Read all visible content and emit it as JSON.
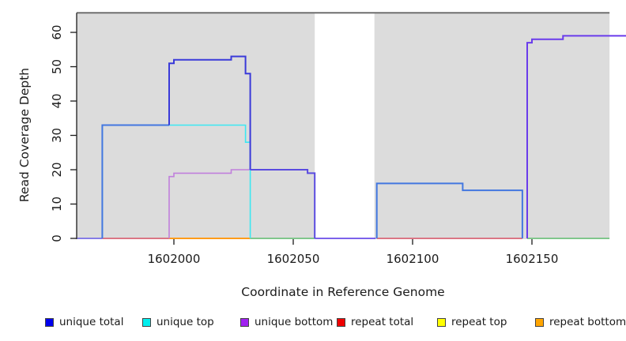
{
  "chart_data": {
    "type": "line",
    "subtype": "step-coverage-plot",
    "title": "",
    "xlabel": "Coordinate in Reference Genome",
    "ylabel": "Read Coverage Depth",
    "xlim": [
      1601959,
      1602190
    ],
    "ylim": [
      0,
      66
    ],
    "x_ticks": [
      1602000,
      1602050,
      1602100,
      1602150
    ],
    "y_ticks": [
      0,
      10,
      20,
      30,
      40,
      50,
      60
    ],
    "grid": false,
    "legend_position": "bottom",
    "region_top_value": 65.7,
    "region_top_border_color": "#6f6f6f",
    "background_regions": [
      {
        "name": "shaded-region-left",
        "x0": 1601959.3,
        "x1": 1602059,
        "color": "#dcdcdc"
      },
      {
        "name": "shaded-region-right",
        "x0": 1602084,
        "x1": 1602182.5,
        "color": "#dcdcdc"
      }
    ],
    "series": [
      {
        "name": "unique-zero-left",
        "color": "#7a6fe8",
        "width": 1.8,
        "points": [
          [
            1601959.5,
            0
          ],
          [
            1601970,
            0
          ]
        ]
      },
      {
        "name": "repeat-total-zero-left",
        "color": "#d95568",
        "width": 1.6,
        "points": [
          [
            1601970,
            0
          ],
          [
            1601998,
            0
          ]
        ]
      },
      {
        "name": "repeat-bottom-zero",
        "color": "#ff9c1a",
        "width": 2,
        "points": [
          [
            1601998,
            0
          ],
          [
            1602032,
            0
          ]
        ]
      },
      {
        "name": "green-zero-mid",
        "color": "#62be72",
        "width": 1.6,
        "points": [
          [
            1602032,
            0
          ],
          [
            1602059,
            0
          ]
        ]
      },
      {
        "name": "unique-zero-gap",
        "color": "#6a4be8",
        "width": 1.8,
        "points": [
          [
            1602059,
            0
          ],
          [
            1602084.5,
            0
          ]
        ]
      },
      {
        "name": "repeat-total-zero-right",
        "color": "#d95568",
        "width": 1.6,
        "points": [
          [
            1602085,
            0
          ],
          [
            1602146,
            0
          ]
        ]
      },
      {
        "name": "green-zero-right",
        "color": "#62be72",
        "width": 1.6,
        "points": [
          [
            1602148,
            0
          ],
          [
            1602182.5,
            0
          ]
        ]
      },
      {
        "name": "unique-bottom-steps",
        "color": "#c07fdc",
        "width": 1.6,
        "points": [
          [
            1601998,
            0
          ],
          [
            1601998,
            18
          ],
          [
            1602000,
            18
          ],
          [
            1602000,
            19
          ],
          [
            1602024,
            19
          ],
          [
            1602024,
            20
          ],
          [
            1602033,
            20
          ]
        ]
      },
      {
        "name": "unique-top",
        "color": "#3be8f2",
        "width": 1.6,
        "points": [
          [
            1601970,
            0
          ],
          [
            1601970,
            33
          ],
          [
            1602030,
            33
          ],
          [
            1602030,
            28
          ],
          [
            1602032,
            28
          ],
          [
            1602032,
            0
          ]
        ]
      },
      {
        "name": "unique-total-left",
        "color": "#4377e0",
        "width": 2,
        "points": [
          [
            1601970,
            0
          ],
          [
            1601970,
            33
          ],
          [
            1601998,
            33
          ]
        ]
      },
      {
        "name": "unique-total-peak",
        "color": "#3a3ad9",
        "width": 2,
        "points": [
          [
            1601998,
            33
          ],
          [
            1601998,
            51
          ],
          [
            1602000,
            51
          ],
          [
            1602000,
            52
          ],
          [
            1602024,
            52
          ],
          [
            1602024,
            53
          ],
          [
            1602030,
            53
          ],
          [
            1602030,
            48
          ],
          [
            1602032,
            48
          ],
          [
            1602032,
            20
          ]
        ]
      },
      {
        "name": "unique-total-bottom-overlap",
        "color": "#5a4be0",
        "width": 2,
        "points": [
          [
            1602032,
            20
          ],
          [
            1602056,
            20
          ],
          [
            1602056,
            19
          ],
          [
            1602059,
            19
          ],
          [
            1602059,
            0
          ]
        ]
      },
      {
        "name": "unique-total-right",
        "color": "#4377e0",
        "width": 2,
        "points": [
          [
            1602085,
            0
          ],
          [
            1602085,
            16
          ],
          [
            1602121,
            16
          ],
          [
            1602121,
            14
          ],
          [
            1602146,
            14
          ],
          [
            1602146,
            0
          ]
        ]
      },
      {
        "name": "unique-bottom-right-overlap",
        "color": "#6a3beb",
        "width": 2,
        "points": [
          [
            1602148,
            0
          ],
          [
            1602148,
            57
          ],
          [
            1602150,
            57
          ],
          [
            1602150,
            58
          ],
          [
            1602163,
            58
          ],
          [
            1602163,
            59
          ],
          [
            1602190,
            59
          ]
        ]
      }
    ]
  },
  "legend": {
    "items": [
      {
        "label": "unique total",
        "color": "#0000ee"
      },
      {
        "label": "unique top",
        "color": "#00eeee"
      },
      {
        "label": "unique bottom",
        "color": "#a020f0"
      },
      {
        "label": "repeat total",
        "color": "#ee0000"
      },
      {
        "label": "repeat top",
        "color": "#ffff00"
      },
      {
        "label": "repeat bottom",
        "color": "#ffa500"
      }
    ]
  },
  "axes": {
    "xlabel": "Coordinate in Reference Genome",
    "ylabel": "Read Coverage Depth"
  }
}
